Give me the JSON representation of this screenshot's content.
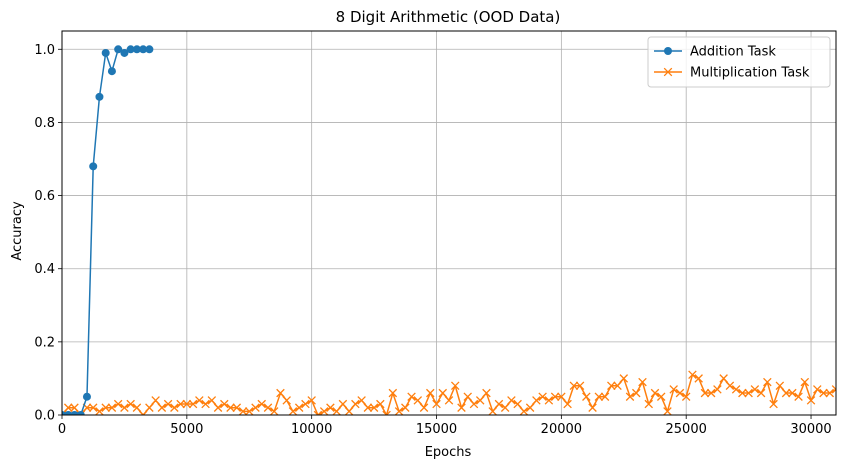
{
  "chart_data": {
    "type": "line",
    "title": "8 Digit Arithmetic (OOD Data)",
    "xlabel": "Epochs",
    "ylabel": "Accuracy",
    "xlim": [
      0,
      31000
    ],
    "ylim": [
      0,
      1.05
    ],
    "grid": true,
    "legend_position": "top-right",
    "x_ticks": [
      0,
      5000,
      10000,
      15000,
      20000,
      25000,
      30000
    ],
    "x_tick_labels": [
      "0",
      "5000",
      "10000",
      "15000",
      "20000",
      "25000",
      "30000"
    ],
    "y_ticks": [
      0.0,
      0.2,
      0.4,
      0.6,
      0.8,
      1.0
    ],
    "y_tick_labels": [
      "0.0",
      "0.2",
      "0.4",
      "0.6",
      "0.8",
      "1.0"
    ],
    "series": [
      {
        "name": "Addition Task",
        "color": "#1f77b4",
        "marker": "circle",
        "x": [
          0,
          250,
          500,
          750,
          1000,
          1250,
          1500,
          1750,
          2000,
          2250,
          2500,
          2750,
          3000,
          3250,
          3500
        ],
        "y": [
          0.0,
          0.0,
          0.0,
          0.0,
          0.05,
          0.68,
          0.87,
          0.99,
          0.94,
          1.0,
          0.99,
          1.0,
          1.0,
          1.0,
          1.0
        ]
      },
      {
        "name": "Multiplication Task",
        "color": "#ff7f0e",
        "marker": "x",
        "x": [
          0,
          250,
          500,
          750,
          1000,
          1250,
          1500,
          1750,
          2000,
          2250,
          2500,
          2750,
          3000,
          3250,
          3500,
          3750,
          4000,
          4250,
          4500,
          4750,
          5000,
          5250,
          5500,
          5750,
          6000,
          6250,
          6500,
          6750,
          7000,
          7250,
          7500,
          7750,
          8000,
          8250,
          8500,
          8750,
          9000,
          9250,
          9500,
          9750,
          10000,
          10250,
          10500,
          10750,
          11000,
          11250,
          11500,
          11750,
          12000,
          12250,
          12500,
          12750,
          13000,
          13250,
          13500,
          13750,
          14000,
          14250,
          14500,
          14750,
          15000,
          15250,
          15500,
          15750,
          16000,
          16250,
          16500,
          16750,
          17000,
          17250,
          17500,
          17750,
          18000,
          18250,
          18500,
          18750,
          19000,
          19250,
          19500,
          19750,
          20000,
          20250,
          20500,
          20750,
          21000,
          21250,
          21500,
          21750,
          22000,
          22250,
          22500,
          22750,
          23000,
          23250,
          23500,
          23750,
          24000,
          24250,
          24500,
          24750,
          25000,
          25250,
          25500,
          25750,
          26000,
          26250,
          26500,
          26750,
          27000,
          27250,
          27500,
          27750,
          28000,
          28250,
          28500,
          28750,
          29000,
          29250,
          29500,
          29750,
          30000,
          30250,
          30500,
          30750,
          31000
        ],
        "y": [
          0.0,
          0.02,
          0.02,
          0.0,
          0.02,
          0.02,
          0.01,
          0.02,
          0.02,
          0.03,
          0.02,
          0.03,
          0.02,
          0.0,
          0.02,
          0.04,
          0.02,
          0.03,
          0.02,
          0.03,
          0.03,
          0.03,
          0.04,
          0.03,
          0.04,
          0.02,
          0.03,
          0.02,
          0.02,
          0.01,
          0.01,
          0.02,
          0.03,
          0.02,
          0.01,
          0.06,
          0.04,
          0.01,
          0.02,
          0.03,
          0.04,
          0.0,
          0.01,
          0.02,
          0.01,
          0.03,
          0.01,
          0.03,
          0.04,
          0.02,
          0.02,
          0.03,
          0.0,
          0.06,
          0.01,
          0.02,
          0.05,
          0.04,
          0.02,
          0.06,
          0.03,
          0.06,
          0.04,
          0.08,
          0.02,
          0.05,
          0.03,
          0.04,
          0.06,
          0.01,
          0.03,
          0.02,
          0.04,
          0.03,
          0.01,
          0.02,
          0.04,
          0.05,
          0.04,
          0.05,
          0.05,
          0.03,
          0.08,
          0.08,
          0.05,
          0.02,
          0.05,
          0.05,
          0.08,
          0.08,
          0.1,
          0.05,
          0.06,
          0.09,
          0.03,
          0.06,
          0.05,
          0.01,
          0.07,
          0.06,
          0.05,
          0.11,
          0.1,
          0.06,
          0.06,
          0.07,
          0.1,
          0.08,
          0.07,
          0.06,
          0.06,
          0.07,
          0.06,
          0.09,
          0.03,
          0.08,
          0.06,
          0.06,
          0.05,
          0.09,
          0.04,
          0.07,
          0.06,
          0.06,
          0.07
        ]
      }
    ]
  }
}
